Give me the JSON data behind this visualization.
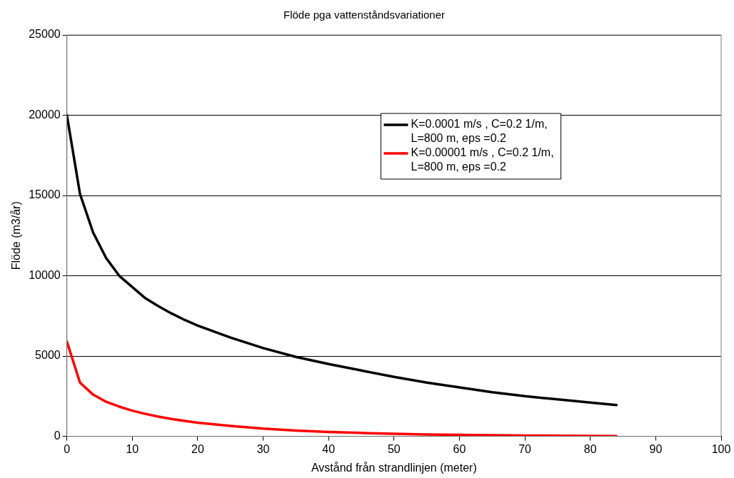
{
  "chart_data": {
    "type": "line",
    "title": "Flöde pga vattenståndsvariationer",
    "xlabel": "Avstånd från strandlinjen (meter)",
    "ylabel": "Flöde (m3/år)",
    "x": [
      0,
      2,
      4,
      6,
      8,
      10,
      12,
      14,
      16,
      18,
      20,
      25,
      30,
      35,
      40,
      45,
      50,
      55,
      60,
      65,
      70,
      75,
      80,
      84
    ],
    "series": [
      {
        "name": "K=0.0001 m/s , C=0.2 1/m, L=800 m, eps =0.2",
        "color": "#000000",
        "values": [
          20000,
          15100,
          12700,
          11100,
          10000,
          9300,
          8600,
          8100,
          7650,
          7250,
          6900,
          6150,
          5500,
          4950,
          4500,
          4100,
          3700,
          3350,
          3050,
          2750,
          2500,
          2300,
          2100,
          1950
        ]
      },
      {
        "name": "K=0.00001 m/s , C=0.2 1/m, L=800 m, eps =0.2",
        "color": "#ff0000",
        "values": [
          5900,
          3350,
          2600,
          2150,
          1850,
          1600,
          1400,
          1230,
          1080,
          960,
          850,
          650,
          480,
          360,
          270,
          210,
          160,
          120,
          90,
          70,
          50,
          40,
          30,
          20
        ]
      }
    ],
    "xlim": [
      0,
      100
    ],
    "xticks": [
      0,
      10,
      20,
      30,
      40,
      50,
      60,
      70,
      80,
      90,
      100
    ],
    "ylim": [
      0,
      25000
    ],
    "yticks": [
      0,
      5000,
      10000,
      15000,
      20000,
      25000
    ],
    "grid": "y",
    "legend": "top right",
    "marker": "none",
    "line_style": "solid"
  }
}
